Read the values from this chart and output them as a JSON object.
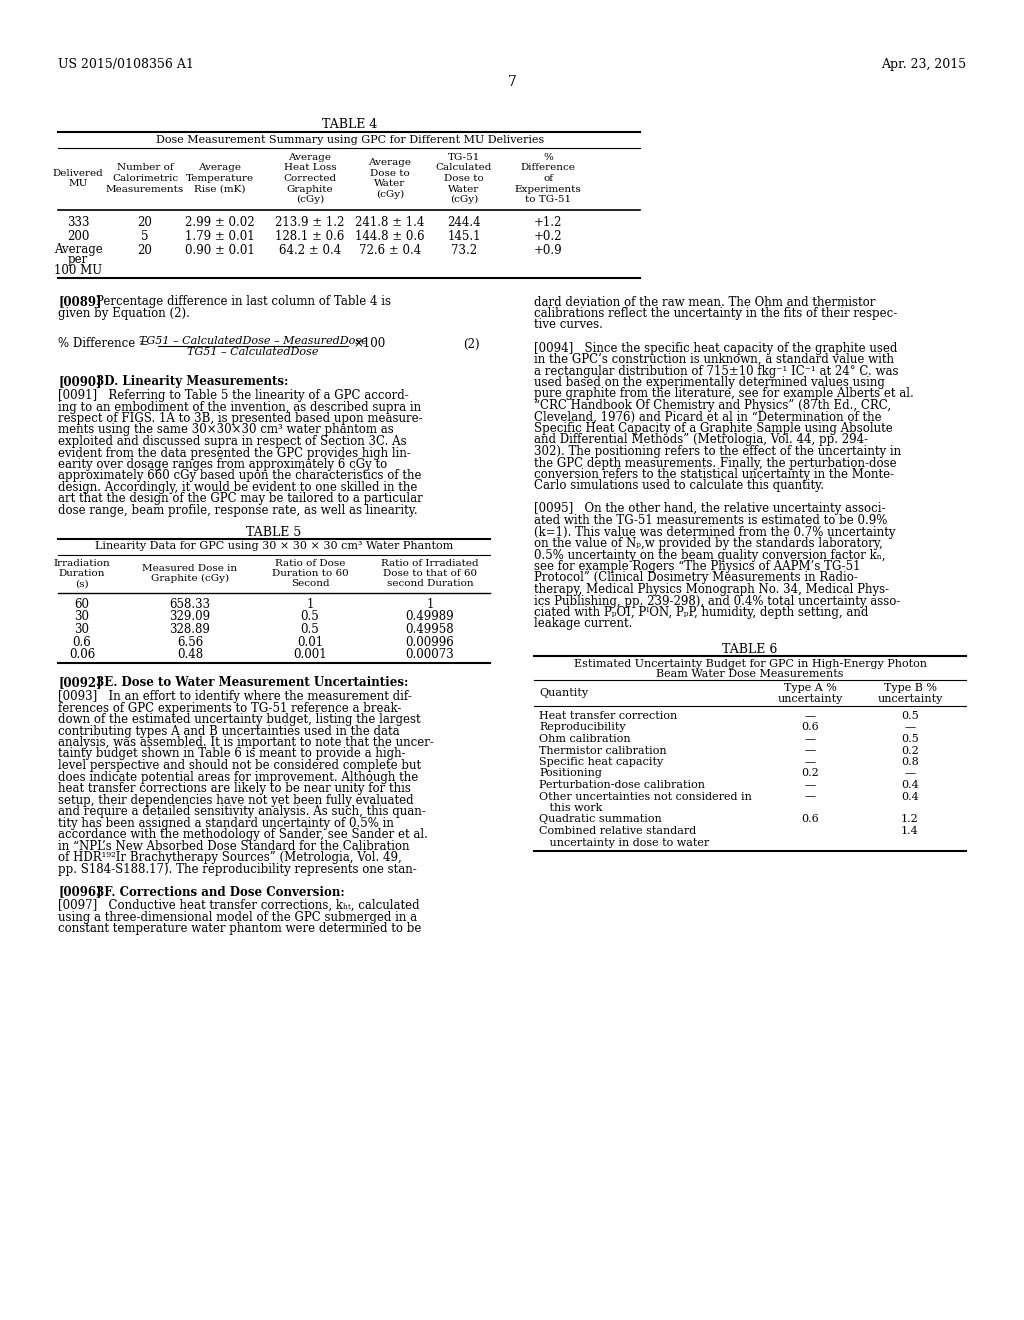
{
  "header_left": "US 2015/0108356 A1",
  "header_right": "Apr. 23, 2015",
  "page_number": "7",
  "bg": "#ffffff",
  "table4_title": "TABLE 4",
  "table4_subtitle": "Dose Measurement Summary using GPC for Different MU Deliveries",
  "table4_col_headers": [
    "Delivered\nMU",
    "Number of\nCalorimetric\nMeasurements",
    "Average\nTemperature\nRise (mK)",
    "Average\nHeat Loss\nCorrected\nGraphite\n(cGy)",
    "Average\nDose to\nWater\n(cGy)",
    "TG-51\nCalculated\nDose to\nWater\n(cGy)",
    "%\nDifference\nof\nExperiments\nto TG-51"
  ],
  "table4_rows": [
    [
      "333",
      "20",
      "2.99 ± 0.02",
      "213.9 ± 1.2  241.8 ± 1.4",
      "244.4",
      "+1.2"
    ],
    [
      "200",
      "5",
      "1.79 ± 0.01",
      "128.1 ± 0.6  144.8 ± 0.6",
      "145.1",
      "+0.2"
    ],
    [
      "Average\nper\n100 MU",
      "20",
      "0.90 ± 0.01",
      "64.2 ± 0.4    72.6 ± 0.4",
      "73.2",
      "+0.9"
    ]
  ],
  "table5_title": "TABLE 5",
  "table5_subtitle": "Linearity Data for GPC using 30 × 30 × 30 cm³ Water Phantom",
  "table5_col_headers": [
    "Irradiation\nDuration\n(s)",
    "Measured Dose in\nGraphite (cGy)",
    "Ratio of Dose\nDuration to 60\nSecond",
    "Ratio of Irradiated\nDose to that of 60\nsecond Duration"
  ],
  "table5_rows": [
    [
      "60",
      "658.33",
      "1",
      "1"
    ],
    [
      "30",
      "329.09",
      "0.5",
      "0.49989"
    ],
    [
      "30",
      "328.89",
      "0.5",
      "0.49958"
    ],
    [
      "0.6",
      "6.56",
      "0.01",
      "0.00996"
    ],
    [
      "0.06",
      "0.48",
      "0.001",
      "0.00073"
    ]
  ],
  "table6_title": "TABLE 6",
  "table6_subtitle1": "Estimated Uncertainty Budget for GPC in High-Energy Photon",
  "table6_subtitle2": "Beam Water Dose Measurements",
  "table6_col_headers": [
    "Quantity",
    "Type A %\nuncertainty",
    "Type B %\nuncertainty"
  ],
  "table6_rows": [
    [
      "Heat transfer correction",
      "—",
      "0.5"
    ],
    [
      "Reproducibility",
      "0.6",
      "—"
    ],
    [
      "Ohm calibration",
      "—",
      "0.5"
    ],
    [
      "Thermistor calibration",
      "—",
      "0.2"
    ],
    [
      "Specific heat capacity",
      "—",
      "0.8"
    ],
    [
      "Positioning",
      "0.2",
      "—"
    ],
    [
      "Perturbation-dose calibration",
      "—",
      "0.4"
    ],
    [
      "Other uncertainties not considered in",
      "—",
      "0.4"
    ],
    [
      "   this work",
      "",
      ""
    ],
    [
      "Quadratic summation",
      "0.6",
      "1.2"
    ],
    [
      "Combined relative standard",
      "",
      "1.4"
    ],
    [
      "   uncertainty in dose to water",
      "",
      ""
    ]
  ]
}
